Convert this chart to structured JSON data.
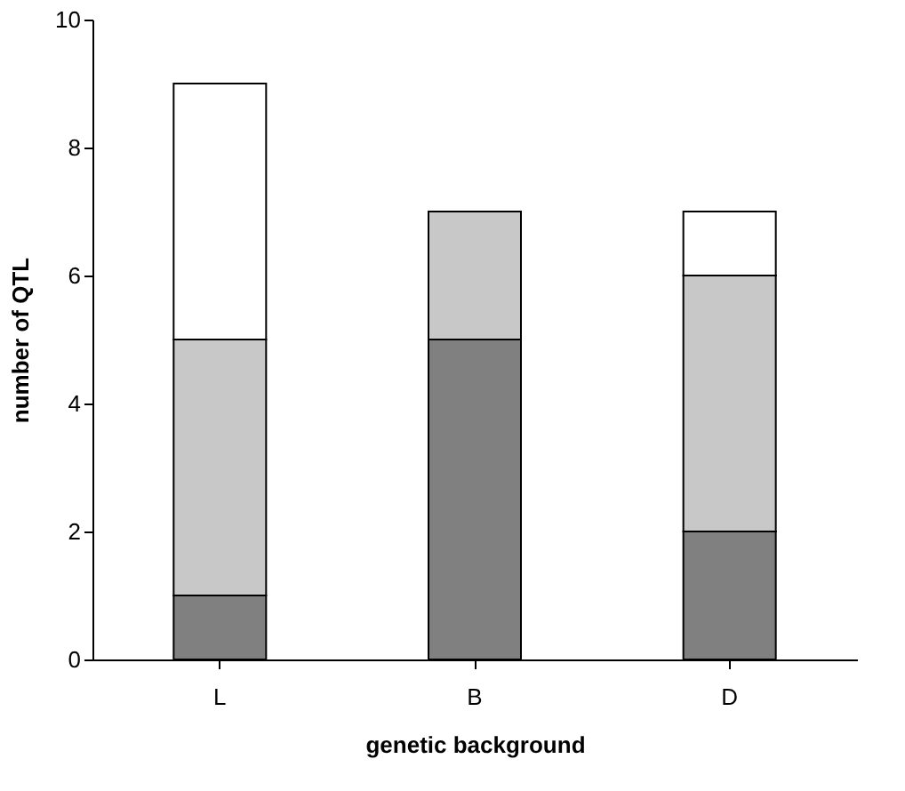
{
  "chart_data": {
    "type": "bar",
    "stacked": true,
    "xlabel": "genetic background",
    "ylabel": "number of QTL",
    "categories": [
      "L",
      "B",
      "D"
    ],
    "series": [
      {
        "color": "#808080",
        "values": [
          1,
          5,
          2
        ]
      },
      {
        "color": "#c8c8c8",
        "values": [
          4,
          2,
          4
        ]
      },
      {
        "color": "#ffffff",
        "values": [
          4,
          0,
          1
        ]
      }
    ],
    "ylim": [
      0,
      10
    ],
    "yticks": [
      0,
      2,
      4,
      6,
      8,
      10
    ],
    "grid": false,
    "legend": false
  }
}
